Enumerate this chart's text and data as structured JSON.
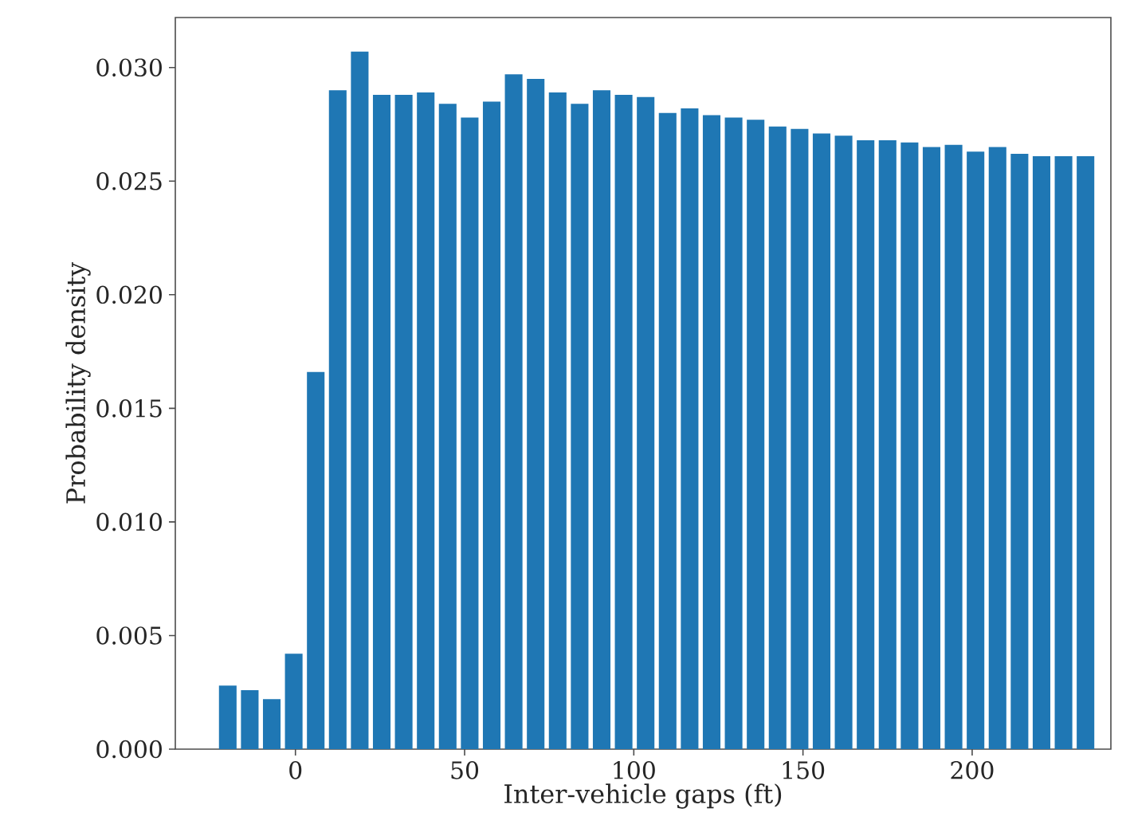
{
  "chart_data": {
    "type": "bar",
    "xlabel": "Inter-vehicle gaps (ft)",
    "ylabel": "Probability density",
    "x": [
      -20,
      -13.5,
      -7,
      -0.5,
      6,
      12.5,
      19,
      25.5,
      32,
      38.5,
      45,
      51.5,
      58,
      64.5,
      71,
      77.5,
      84,
      90.5,
      97,
      103.5,
      110,
      116.5,
      123,
      129.5,
      136,
      142.5,
      149,
      155.5,
      162,
      168.5,
      175,
      181.5,
      188,
      194.5,
      201,
      207.5,
      214,
      220.5,
      227,
      233.5
    ],
    "values": [
      0.0028,
      0.0026,
      0.0022,
      0.0042,
      0.0166,
      0.029,
      0.0307,
      0.0288,
      0.0288,
      0.0289,
      0.0284,
      0.0278,
      0.0285,
      0.0297,
      0.0295,
      0.0289,
      0.0284,
      0.029,
      0.0288,
      0.0287,
      0.028,
      0.0282,
      0.0279,
      0.0278,
      0.0277,
      0.0274,
      0.0273,
      0.0271,
      0.027,
      0.0268,
      0.0268,
      0.0267,
      0.0265,
      0.0266,
      0.0263,
      0.0265,
      0.0262,
      0.0261,
      0.0261,
      0.0261
    ],
    "color": "#1f77b4",
    "xlim": [
      -35.5,
      241
    ],
    "ylim": [
      0,
      0.0322
    ],
    "xticks": [
      0,
      50,
      100,
      150,
      200
    ],
    "yticks": [
      {
        "value": 0,
        "label": "0.000"
      },
      {
        "value": 0.005,
        "label": "0.005"
      },
      {
        "value": 0.01,
        "label": "0.010"
      },
      {
        "value": 0.015,
        "label": "0.015"
      },
      {
        "value": 0.02,
        "label": "0.020"
      },
      {
        "value": 0.025,
        "label": "0.025"
      },
      {
        "value": 0.03,
        "label": "0.030"
      }
    ],
    "grid": false
  }
}
